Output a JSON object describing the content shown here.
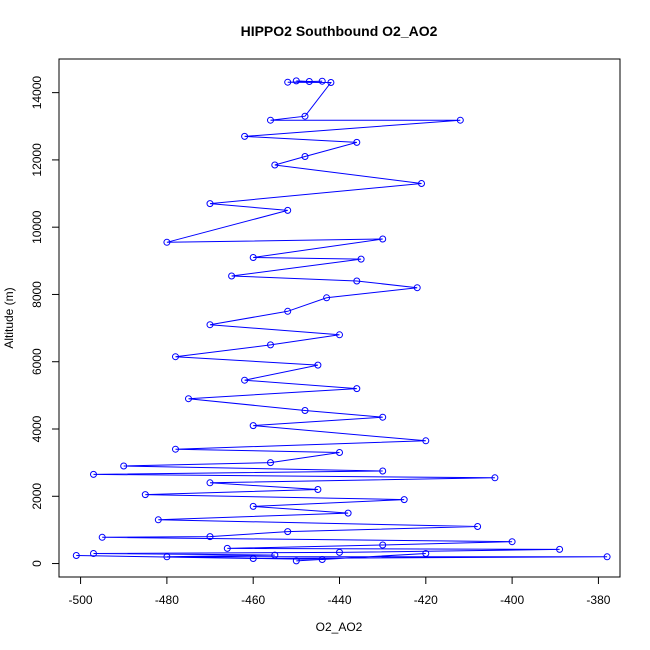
{
  "chart_data": {
    "type": "scatter",
    "title": "HIPPO2 Southbound O2_AO2",
    "xlabel": "O2_AO2",
    "ylabel": "Altitude (m)",
    "xlim": [
      -505,
      -375
    ],
    "ylim": [
      -400,
      15000
    ],
    "x_ticks": [
      -500,
      -480,
      -460,
      -440,
      -420,
      -400,
      -380
    ],
    "y_ticks": [
      0,
      2000,
      4000,
      6000,
      8000,
      10000,
      12000,
      14000
    ],
    "marker": "open-circle",
    "connected_lines": true,
    "series_color": "#0000ff",
    "y_tick_rotation": "vertical",
    "legend": "none",
    "grid": false,
    "series": [
      {
        "points": [
          [
            -450.0,
            14350
          ],
          [
            -447.0,
            14330
          ],
          [
            -444.0,
            14340
          ],
          [
            -452.0,
            14310
          ],
          [
            -442.0,
            14300
          ],
          [
            -448.0,
            13300
          ],
          [
            -456.0,
            13180
          ],
          [
            -412.0,
            13180
          ],
          [
            -462.0,
            12700
          ],
          [
            -436.0,
            12520
          ],
          [
            -448.0,
            12100
          ],
          [
            -455.0,
            11850
          ],
          [
            -421.0,
            11300
          ],
          [
            -470.0,
            10700
          ],
          [
            -452.0,
            10500
          ],
          [
            -480.0,
            9550
          ],
          [
            -430.0,
            9650
          ],
          [
            -460.0,
            9100
          ],
          [
            -435.0,
            9050
          ],
          [
            -465.0,
            8550
          ],
          [
            -436.0,
            8400
          ],
          [
            -422.0,
            8200
          ],
          [
            -443.0,
            7900
          ],
          [
            -452.0,
            7500
          ],
          [
            -470.0,
            7100
          ],
          [
            -440.0,
            6800
          ],
          [
            -456.0,
            6500
          ],
          [
            -478.0,
            6150
          ],
          [
            -445.0,
            5900
          ],
          [
            -462.0,
            5450
          ],
          [
            -436.0,
            5200
          ],
          [
            -475.0,
            4900
          ],
          [
            -448.0,
            4550
          ],
          [
            -430.0,
            4350
          ],
          [
            -460.0,
            4100
          ],
          [
            -420.0,
            3650
          ],
          [
            -478.0,
            3400
          ],
          [
            -440.0,
            3300
          ],
          [
            -456.0,
            3000
          ],
          [
            -490.0,
            2900
          ],
          [
            -430.0,
            2750
          ],
          [
            -497.0,
            2650
          ],
          [
            -404.0,
            2550
          ],
          [
            -470.0,
            2400
          ],
          [
            -445.0,
            2200
          ],
          [
            -485.0,
            2050
          ],
          [
            -425.0,
            1900
          ],
          [
            -460.0,
            1700
          ],
          [
            -438.0,
            1500
          ],
          [
            -482.0,
            1300
          ],
          [
            -408.0,
            1100
          ],
          [
            -452.0,
            950
          ],
          [
            -470.0,
            800
          ],
          [
            -495.0,
            780
          ],
          [
            -400.0,
            650
          ],
          [
            -430.0,
            550
          ],
          [
            -466.0,
            450
          ],
          [
            -389.0,
            420
          ],
          [
            -440.0,
            330
          ],
          [
            -497.0,
            300
          ],
          [
            -455.0,
            250
          ],
          [
            -480.0,
            200
          ],
          [
            -378.0,
            200
          ],
          [
            -460.0,
            150
          ],
          [
            -501.0,
            240
          ],
          [
            -444.0,
            120
          ],
          [
            -420.0,
            300
          ],
          [
            -450.0,
            80
          ]
        ]
      }
    ]
  }
}
